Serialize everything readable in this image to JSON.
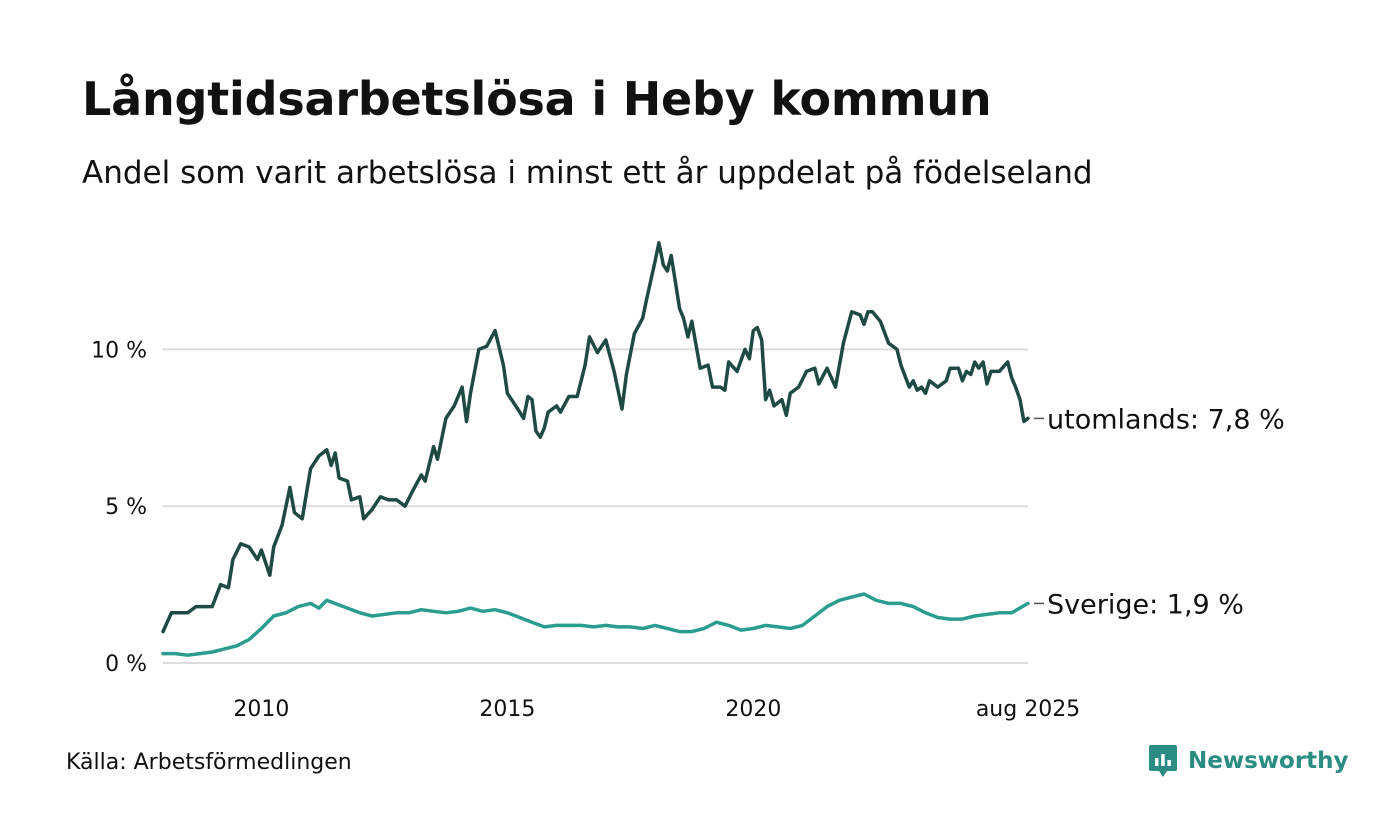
{
  "title": "Långtidsarbetslösa i Heby kommun",
  "subtitle": "Andel som varit arbetslösa i minst ett år uppdelat på födelseland",
  "source": "Källa: Arbetsförmedlingen",
  "brand": {
    "name": "Newsworthy",
    "icon": "newsworthy-logo-icon",
    "color": "#2a8c82"
  },
  "chart_data": {
    "type": "line",
    "title": "Långtidsarbetslösa i Heby kommun",
    "subtitle": "Andel som varit arbetslösa i minst ett år uppdelat på födelseland",
    "xlabel": "",
    "ylabel": "",
    "x_range": [
      2008.0,
      2025.583
    ],
    "ylim": [
      0,
      14
    ],
    "y_ticks": [
      0,
      5,
      10
    ],
    "y_tick_labels": [
      "0 %",
      "5 %",
      "10 %"
    ],
    "x_ticks": [
      2010,
      2015,
      2020,
      2025.583
    ],
    "x_tick_labels": [
      "2010",
      "2015",
      "2020",
      "aug 2025"
    ],
    "grid": "horizontal",
    "series": [
      {
        "name": "utomlands",
        "end_label": "utomlands: 7,8 %",
        "color": "#1f4a44",
        "points": [
          [
            2008.0,
            1.0
          ],
          [
            2008.17,
            1.6
          ],
          [
            2008.5,
            1.6
          ],
          [
            2008.67,
            1.8
          ],
          [
            2009.0,
            1.8
          ],
          [
            2009.17,
            2.5
          ],
          [
            2009.33,
            2.4
          ],
          [
            2009.42,
            3.3
          ],
          [
            2009.58,
            3.8
          ],
          [
            2009.75,
            3.7
          ],
          [
            2009.92,
            3.3
          ],
          [
            2010.0,
            3.6
          ],
          [
            2010.17,
            2.8
          ],
          [
            2010.25,
            3.7
          ],
          [
            2010.42,
            4.4
          ],
          [
            2010.58,
            5.6
          ],
          [
            2010.67,
            4.8
          ],
          [
            2010.83,
            4.6
          ],
          [
            2011.0,
            6.2
          ],
          [
            2011.17,
            6.6
          ],
          [
            2011.33,
            6.8
          ],
          [
            2011.42,
            6.3
          ],
          [
            2011.5,
            6.7
          ],
          [
            2011.58,
            5.9
          ],
          [
            2011.75,
            5.8
          ],
          [
            2011.83,
            5.2
          ],
          [
            2012.0,
            5.3
          ],
          [
            2012.08,
            4.6
          ],
          [
            2012.25,
            4.9
          ],
          [
            2012.42,
            5.3
          ],
          [
            2012.58,
            5.2
          ],
          [
            2012.75,
            5.2
          ],
          [
            2012.92,
            5.0
          ],
          [
            2013.08,
            5.5
          ],
          [
            2013.25,
            6.0
          ],
          [
            2013.33,
            5.8
          ],
          [
            2013.5,
            6.9
          ],
          [
            2013.58,
            6.5
          ],
          [
            2013.75,
            7.8
          ],
          [
            2013.92,
            8.2
          ],
          [
            2014.08,
            8.8
          ],
          [
            2014.17,
            7.7
          ],
          [
            2014.25,
            8.6
          ],
          [
            2014.42,
            10.0
          ],
          [
            2014.58,
            10.1
          ],
          [
            2014.75,
            10.6
          ],
          [
            2014.92,
            9.5
          ],
          [
            2015.0,
            8.6
          ],
          [
            2015.17,
            8.2
          ],
          [
            2015.25,
            8.0
          ],
          [
            2015.33,
            7.8
          ],
          [
            2015.42,
            8.5
          ],
          [
            2015.5,
            8.4
          ],
          [
            2015.58,
            7.4
          ],
          [
            2015.67,
            7.2
          ],
          [
            2015.75,
            7.5
          ],
          [
            2015.83,
            8.0
          ],
          [
            2016.0,
            8.2
          ],
          [
            2016.08,
            8.0
          ],
          [
            2016.25,
            8.5
          ],
          [
            2016.42,
            8.5
          ],
          [
            2016.58,
            9.5
          ],
          [
            2016.67,
            10.4
          ],
          [
            2016.83,
            9.9
          ],
          [
            2017.0,
            10.3
          ],
          [
            2017.17,
            9.3
          ],
          [
            2017.33,
            8.1
          ],
          [
            2017.42,
            9.2
          ],
          [
            2017.58,
            10.5
          ],
          [
            2017.75,
            11.0
          ],
          [
            2017.83,
            11.6
          ],
          [
            2018.0,
            12.8
          ],
          [
            2018.08,
            13.4
          ],
          [
            2018.17,
            12.7
          ],
          [
            2018.25,
            12.5
          ],
          [
            2018.33,
            13.0
          ],
          [
            2018.5,
            11.3
          ],
          [
            2018.58,
            11.0
          ],
          [
            2018.67,
            10.4
          ],
          [
            2018.75,
            10.9
          ],
          [
            2018.92,
            9.4
          ],
          [
            2019.08,
            9.5
          ],
          [
            2019.17,
            8.8
          ],
          [
            2019.33,
            8.8
          ],
          [
            2019.42,
            8.7
          ],
          [
            2019.5,
            9.6
          ],
          [
            2019.67,
            9.3
          ],
          [
            2019.83,
            10.0
          ],
          [
            2019.92,
            9.7
          ],
          [
            2020.0,
            10.6
          ],
          [
            2020.08,
            10.7
          ],
          [
            2020.17,
            10.3
          ],
          [
            2020.25,
            8.4
          ],
          [
            2020.33,
            8.7
          ],
          [
            2020.42,
            8.2
          ],
          [
            2020.58,
            8.4
          ],
          [
            2020.67,
            7.9
          ],
          [
            2020.75,
            8.6
          ],
          [
            2020.92,
            8.8
          ],
          [
            2021.08,
            9.3
          ],
          [
            2021.25,
            9.4
          ],
          [
            2021.33,
            8.9
          ],
          [
            2021.5,
            9.4
          ],
          [
            2021.67,
            8.8
          ],
          [
            2021.83,
            10.2
          ],
          [
            2022.0,
            11.2
          ],
          [
            2022.17,
            11.1
          ],
          [
            2022.25,
            10.8
          ],
          [
            2022.33,
            11.2
          ],
          [
            2022.42,
            11.2
          ],
          [
            2022.58,
            10.9
          ],
          [
            2022.75,
            10.2
          ],
          [
            2022.92,
            10.0
          ],
          [
            2023.0,
            9.5
          ],
          [
            2023.17,
            8.8
          ],
          [
            2023.25,
            9.0
          ],
          [
            2023.33,
            8.7
          ],
          [
            2023.42,
            8.8
          ],
          [
            2023.5,
            8.6
          ],
          [
            2023.58,
            9.0
          ],
          [
            2023.75,
            8.8
          ],
          [
            2023.92,
            9.0
          ],
          [
            2024.0,
            9.4
          ],
          [
            2024.17,
            9.4
          ],
          [
            2024.25,
            9.0
          ],
          [
            2024.33,
            9.3
          ],
          [
            2024.42,
            9.2
          ],
          [
            2024.5,
            9.6
          ],
          [
            2024.58,
            9.4
          ],
          [
            2024.67,
            9.6
          ],
          [
            2024.75,
            8.9
          ],
          [
            2024.83,
            9.3
          ],
          [
            2025.0,
            9.3
          ],
          [
            2025.17,
            9.6
          ],
          [
            2025.25,
            9.1
          ],
          [
            2025.33,
            8.8
          ],
          [
            2025.42,
            8.4
          ],
          [
            2025.5,
            7.7
          ],
          [
            2025.583,
            7.8
          ]
        ]
      },
      {
        "name": "Sverige",
        "end_label": "Sverige: 1,9 %",
        "color": "#2a9d8f",
        "points": [
          [
            2008.0,
            0.3
          ],
          [
            2008.25,
            0.3
          ],
          [
            2008.5,
            0.25
          ],
          [
            2008.75,
            0.3
          ],
          [
            2009.0,
            0.35
          ],
          [
            2009.25,
            0.45
          ],
          [
            2009.5,
            0.55
          ],
          [
            2009.75,
            0.75
          ],
          [
            2010.0,
            1.1
          ],
          [
            2010.25,
            1.5
          ],
          [
            2010.5,
            1.6
          ],
          [
            2010.75,
            1.8
          ],
          [
            2011.0,
            1.9
          ],
          [
            2011.17,
            1.75
          ],
          [
            2011.33,
            2.0
          ],
          [
            2011.58,
            1.85
          ],
          [
            2011.75,
            1.75
          ],
          [
            2012.0,
            1.6
          ],
          [
            2012.25,
            1.5
          ],
          [
            2012.5,
            1.55
          ],
          [
            2012.75,
            1.6
          ],
          [
            2013.0,
            1.6
          ],
          [
            2013.25,
            1.7
          ],
          [
            2013.5,
            1.65
          ],
          [
            2013.75,
            1.6
          ],
          [
            2014.0,
            1.65
          ],
          [
            2014.25,
            1.75
          ],
          [
            2014.5,
            1.65
          ],
          [
            2014.75,
            1.7
          ],
          [
            2015.0,
            1.6
          ],
          [
            2015.25,
            1.45
          ],
          [
            2015.5,
            1.3
          ],
          [
            2015.75,
            1.15
          ],
          [
            2016.0,
            1.2
          ],
          [
            2016.25,
            1.2
          ],
          [
            2016.5,
            1.2
          ],
          [
            2016.75,
            1.15
          ],
          [
            2017.0,
            1.2
          ],
          [
            2017.25,
            1.15
          ],
          [
            2017.5,
            1.15
          ],
          [
            2017.75,
            1.1
          ],
          [
            2018.0,
            1.2
          ],
          [
            2018.25,
            1.1
          ],
          [
            2018.5,
            1.0
          ],
          [
            2018.75,
            1.0
          ],
          [
            2019.0,
            1.1
          ],
          [
            2019.25,
            1.3
          ],
          [
            2019.5,
            1.2
          ],
          [
            2019.75,
            1.05
          ],
          [
            2020.0,
            1.1
          ],
          [
            2020.25,
            1.2
          ],
          [
            2020.5,
            1.15
          ],
          [
            2020.75,
            1.1
          ],
          [
            2021.0,
            1.2
          ],
          [
            2021.25,
            1.5
          ],
          [
            2021.5,
            1.8
          ],
          [
            2021.75,
            2.0
          ],
          [
            2022.0,
            2.1
          ],
          [
            2022.25,
            2.2
          ],
          [
            2022.5,
            2.0
          ],
          [
            2022.75,
            1.9
          ],
          [
            2023.0,
            1.9
          ],
          [
            2023.25,
            1.8
          ],
          [
            2023.5,
            1.6
          ],
          [
            2023.75,
            1.45
          ],
          [
            2024.0,
            1.4
          ],
          [
            2024.25,
            1.4
          ],
          [
            2024.5,
            1.5
          ],
          [
            2024.75,
            1.55
          ],
          [
            2025.0,
            1.6
          ],
          [
            2025.25,
            1.6
          ],
          [
            2025.583,
            1.9
          ]
        ]
      }
    ]
  }
}
